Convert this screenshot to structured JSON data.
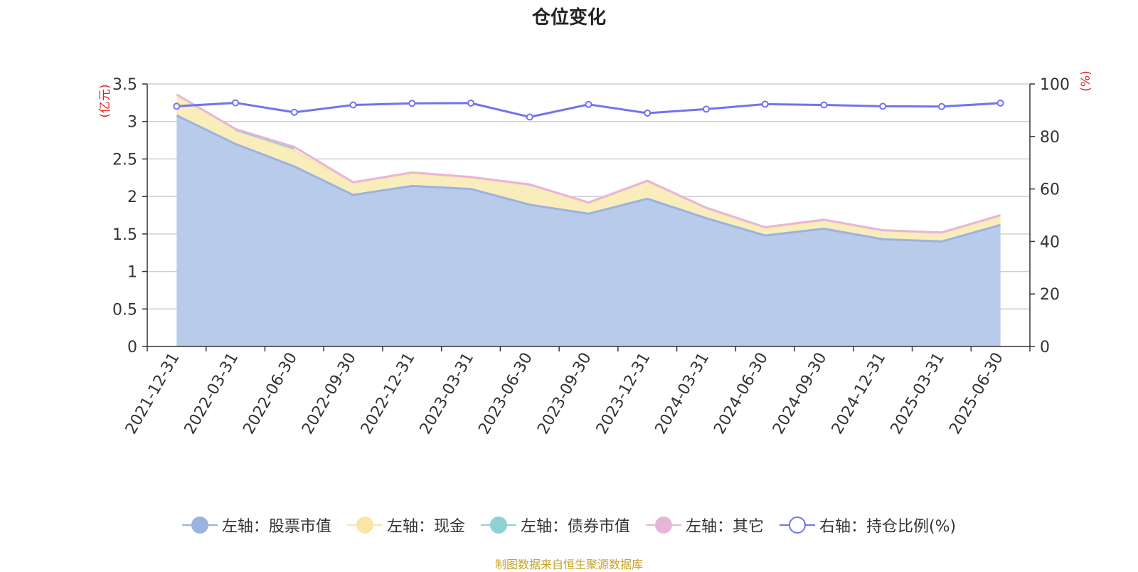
{
  "title": "仓位变化",
  "source": "制图数据来自恒生聚源数据库",
  "legend": [
    {
      "label": "左轴：股票市值",
      "color": "#9ab3df",
      "fill": true
    },
    {
      "label": "左轴：现金",
      "color": "#f8e6a6",
      "fill": true
    },
    {
      "label": "左轴：债券市值",
      "color": "#8fd0d3",
      "fill": true
    },
    {
      "label": "左轴：其它",
      "color": "#e7b5da",
      "fill": true
    },
    {
      "label": "右轴：持仓比例(%)",
      "color": "#6f75ee",
      "fill": false
    }
  ],
  "chart_data": {
    "type": "area",
    "title": "仓位变化",
    "x": [
      "2021-12-31",
      "2022-03-31",
      "2022-06-30",
      "2022-09-30",
      "2022-12-31",
      "2023-03-31",
      "2023-06-30",
      "2023-09-30",
      "2023-12-31",
      "2024-03-31",
      "2024-06-30",
      "2024-09-30",
      "2024-12-31",
      "2025-03-31",
      "2025-06-30"
    ],
    "y_left_label": "(亿元)",
    "y_right_label": "(%)",
    "y_left_lim": [
      0,
      3.5
    ],
    "y_left_ticks": [
      "0",
      "0.5",
      "1",
      "1.5",
      "2",
      "2.5",
      "3",
      "3.5"
    ],
    "y_right_lim": [
      0,
      100
    ],
    "y_right_ticks": [
      "0",
      "20",
      "40",
      "60",
      "80",
      "100"
    ],
    "grid": true,
    "legend_position": "bottom",
    "series": [
      {
        "name": "左轴：股票市值",
        "axis": "left",
        "stack": true,
        "values": [
          3.08,
          2.7,
          2.4,
          2.02,
          2.14,
          2.1,
          1.89,
          1.77,
          1.97,
          1.71,
          1.48,
          1.57,
          1.43,
          1.4,
          1.62
        ]
      },
      {
        "name": "左轴：现金",
        "axis": "left",
        "stack": true,
        "values": [
          0.27,
          0.19,
          0.21,
          0.16,
          0.17,
          0.15,
          0.26,
          0.14,
          0.23,
          0.13,
          0.1,
          0.11,
          0.11,
          0.11,
          0.12
        ]
      },
      {
        "name": "左轴：债券市值",
        "axis": "left",
        "stack": true,
        "values": [
          null,
          0.0,
          0.03,
          null,
          null,
          null,
          null,
          null,
          null,
          null,
          null,
          null,
          null,
          null,
          null
        ]
      },
      {
        "name": "左轴：其它",
        "axis": "left",
        "stack": true,
        "values": [
          0.01,
          0.01,
          0.02,
          0.01,
          0.01,
          0.01,
          0.01,
          0.01,
          0.01,
          0.01,
          0.01,
          0.01,
          0.01,
          0.01,
          0.01
        ]
      },
      {
        "name": "右轴：持仓比例(%)",
        "axis": "right",
        "stack": false,
        "values": [
          91.5,
          92.8,
          89.2,
          92.0,
          92.6,
          92.7,
          87.4,
          92.2,
          88.9,
          90.4,
          92.3,
          92.0,
          91.5,
          91.4,
          92.7
        ]
      }
    ]
  }
}
